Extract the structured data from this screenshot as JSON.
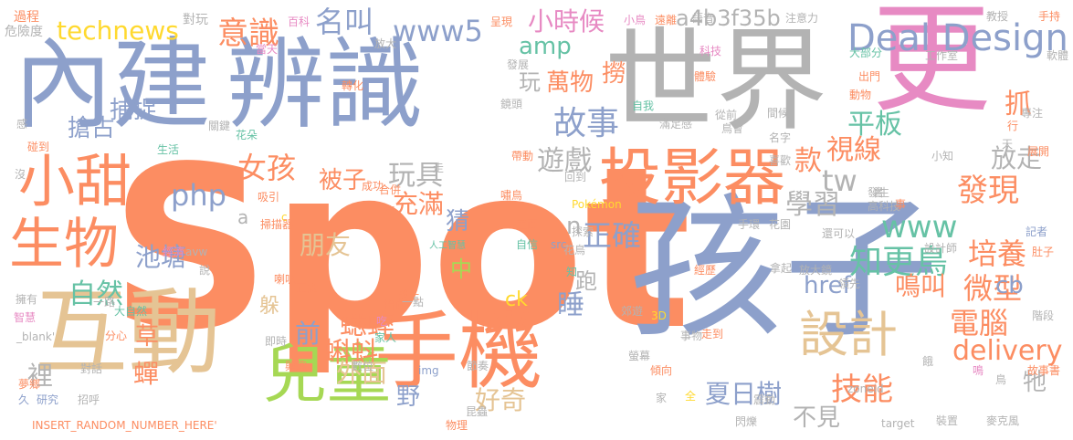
{
  "palette": {
    "orange": "#fc8d62",
    "blue": "#8da0cb",
    "pink": "#e78ac3",
    "green": "#a6d854",
    "yellow": "#ffd92f",
    "tan": "#e5c494",
    "gray": "#b3b3b3",
    "teal": "#66c2a5"
  },
  "words": [
    {
      "text": "Spot",
      "color": "orange"
    },
    {
      "text": "孩子",
      "color": "blue"
    },
    {
      "text": "世界",
      "color": "gray"
    },
    {
      "text": "更",
      "color": "pink"
    },
    {
      "text": "內建",
      "color": "blue"
    },
    {
      "text": "辨識",
      "color": "blue"
    },
    {
      "text": "互動",
      "color": "tan"
    },
    {
      "text": "手機",
      "color": "orange"
    },
    {
      "text": "投影器",
      "color": "orange"
    },
    {
      "text": "兒童",
      "color": "green"
    },
    {
      "text": "小甜",
      "color": "orange"
    },
    {
      "text": "生物",
      "color": "orange"
    },
    {
      "text": "設計",
      "color": "tan"
    },
    {
      "text": "Deal Design",
      "color": "blue"
    },
    {
      "text": "technews",
      "color": "yellow"
    },
    {
      "text": "www5",
      "color": "blue"
    },
    {
      "text": "意識",
      "color": "orange"
    },
    {
      "text": "名叫",
      "color": "blue"
    },
    {
      "text": "a4b3f35b",
      "color": "gray"
    },
    {
      "text": "小時候",
      "color": "pink"
    },
    {
      "text": "amp",
      "color": "teal"
    },
    {
      "text": "故事",
      "color": "blue"
    },
    {
      "text": "遊戲",
      "color": "gray"
    },
    {
      "text": "平板",
      "color": "teal"
    },
    {
      "text": "款",
      "color": "orange"
    },
    {
      "text": "視線",
      "color": "orange"
    },
    {
      "text": "女孩",
      "color": "orange"
    },
    {
      "text": "php",
      "color": "blue"
    },
    {
      "text": "玩具",
      "color": "gray"
    },
    {
      "text": "學習",
      "color": "gray"
    },
    {
      "text": "tw",
      "color": "gray"
    },
    {
      "text": "www",
      "color": "teal"
    },
    {
      "text": "發現",
      "color": "orange"
    },
    {
      "text": "放走",
      "color": "gray"
    },
    {
      "text": "正確",
      "color": "blue"
    },
    {
      "text": "知更鳥",
      "color": "teal"
    },
    {
      "text": "培養",
      "color": "orange"
    },
    {
      "text": "自然",
      "color": "teal"
    },
    {
      "text": "朋友",
      "color": "tan"
    },
    {
      "text": "池塘",
      "color": "blue"
    },
    {
      "text": "蟋蟀",
      "color": "orange"
    },
    {
      "text": "蝌蚪",
      "color": "orange"
    },
    {
      "text": "外面",
      "color": "tan"
    },
    {
      "text": "微型",
      "color": "orange"
    },
    {
      "text": "電腦",
      "color": "orange"
    },
    {
      "text": "技能",
      "color": "orange"
    },
    {
      "text": "delivery",
      "color": "orange"
    },
    {
      "text": "夏日樹",
      "color": "blue"
    },
    {
      "text": "不見",
      "color": "gray"
    },
    {
      "text": "好奇",
      "color": "tan"
    },
    {
      "text": "cb",
      "color": "blue"
    },
    {
      "text": "href",
      "color": "blue"
    },
    {
      "text": "鳴叫",
      "color": "orange"
    },
    {
      "text": "捕捉",
      "color": "blue"
    },
    {
      "text": "搶占",
      "color": "blue"
    },
    {
      "text": "被子",
      "color": "orange"
    },
    {
      "text": "充滿",
      "color": "orange"
    },
    {
      "text": "猜",
      "color": "blue"
    },
    {
      "text": "中",
      "color": "green"
    },
    {
      "text": "ck",
      "color": "yellow"
    },
    {
      "text": "睡",
      "color": "blue"
    },
    {
      "text": "跑",
      "color": "gray"
    },
    {
      "text": "萬物",
      "color": "orange"
    },
    {
      "text": "撈",
      "color": "orange"
    },
    {
      "text": "玩",
      "color": "gray"
    },
    {
      "text": "前",
      "color": "blue"
    },
    {
      "text": "草",
      "color": "orange"
    },
    {
      "text": "躲",
      "color": "tan"
    },
    {
      "text": "裡",
      "color": "gray"
    },
    {
      "text": "蟬",
      "color": "orange"
    },
    {
      "text": "野",
      "color": "blue"
    },
    {
      "text": "抓",
      "color": "orange"
    },
    {
      "text": "牠",
      "color": "gray"
    },
    {
      "text": "n",
      "color": "gray"
    },
    {
      "text": "a",
      "color": "gray"
    },
    {
      "text": "過程",
      "color": "orange"
    },
    {
      "text": "危險度",
      "color": "gray"
    },
    {
      "text": "對玩",
      "color": "gray"
    },
    {
      "text": "百科",
      "color": "pink"
    },
    {
      "text": "呈現",
      "color": "orange"
    },
    {
      "text": "小鳥",
      "color": "pink"
    },
    {
      "text": "遠離",
      "color": "orange"
    },
    {
      "text": "語音",
      "color": "gray"
    },
    {
      "text": "注意力",
      "color": "gray"
    },
    {
      "text": "教授",
      "color": "gray"
    },
    {
      "text": "手持",
      "color": "orange"
    },
    {
      "text": "軟體",
      "color": "gray"
    },
    {
      "text": "工作室",
      "color": "gray"
    },
    {
      "text": "科技",
      "color": "pink"
    },
    {
      "text": "大部分",
      "color": "teal"
    },
    {
      "text": "出門",
      "color": "orange"
    },
    {
      "text": "動物",
      "color": "orange"
    },
    {
      "text": "專注",
      "color": "gray"
    },
    {
      "text": "展開",
      "color": "orange"
    },
    {
      "text": "記者",
      "color": "blue"
    },
    {
      "text": "肚子",
      "color": "orange"
    },
    {
      "text": "高科技",
      "color": "gray"
    },
    {
      "text": "發生",
      "color": "gray"
    },
    {
      "text": "還可以",
      "color": "gray"
    },
    {
      "text": "設計師",
      "color": "gray"
    },
    {
      "text": "放大鏡",
      "color": "gray"
    },
    {
      "text": "領先",
      "color": "gray"
    },
    {
      "text": "階段",
      "color": "gray"
    },
    {
      "text": "故事書",
      "color": "orange"
    },
    {
      "text": "麥克風",
      "color": "gray"
    },
    {
      "text": "裝置",
      "color": "gray"
    },
    {
      "text": "target",
      "color": "gray"
    },
    {
      "text": "鳥",
      "color": "gray"
    },
    {
      "text": "閃爍",
      "color": "gray"
    },
    {
      "text": "zoneid",
      "color": "gray"
    },
    {
      "text": "震動",
      "color": "gray"
    },
    {
      "text": "全",
      "color": "yellow"
    },
    {
      "text": "家",
      "color": "gray"
    },
    {
      "text": "傾向",
      "color": "orange"
    },
    {
      "text": "螢幕",
      "color": "gray"
    },
    {
      "text": "走到",
      "color": "orange"
    },
    {
      "text": "事物",
      "color": "gray"
    },
    {
      "text": "3D",
      "color": "yellow"
    },
    {
      "text": "拿起",
      "color": "gray"
    },
    {
      "text": "經歷",
      "color": "orange"
    },
    {
      "text": "花園",
      "color": "gray"
    },
    {
      "text": "src",
      "color": "blue"
    },
    {
      "text": "手環",
      "color": "gray"
    },
    {
      "text": "探索",
      "color": "gray"
    },
    {
      "text": "畫面",
      "color": "orange"
    },
    {
      "text": "自信",
      "color": "teal"
    },
    {
      "text": "花鳥",
      "color": "gray"
    },
    {
      "text": "知",
      "color": "teal"
    },
    {
      "text": "郊遊",
      "color": "gray"
    },
    {
      "text": "節奏",
      "color": "gray"
    },
    {
      "text": "人工智慧",
      "color": "teal"
    },
    {
      "text": "Pokémon",
      "color": "yellow"
    },
    {
      "text": "回到",
      "color": "gray"
    },
    {
      "text": "嘯鳥",
      "color": "orange"
    },
    {
      "text": "帶動",
      "color": "orange"
    },
    {
      "text": "滿足感",
      "color": "gray"
    },
    {
      "text": "從前",
      "color": "gray"
    },
    {
      "text": "鳥會",
      "color": "gray"
    },
    {
      "text": "名字",
      "color": "gray"
    },
    {
      "text": "喜歡",
      "color": "gray"
    },
    {
      "text": "小知",
      "color": "gray"
    },
    {
      "text": "書",
      "color": "gray"
    },
    {
      "text": "事",
      "color": "orange"
    },
    {
      "text": "隻",
      "color": "orange"
    },
    {
      "text": "合併",
      "color": "orange"
    },
    {
      "text": "吸引",
      "color": "orange"
    },
    {
      "text": "成功",
      "color": "orange"
    },
    {
      "text": "走",
      "color": "gray"
    },
    {
      "text": "生活",
      "color": "teal"
    },
    {
      "text": "感",
      "color": "gray"
    },
    {
      "text": "碰到",
      "color": "orange"
    },
    {
      "text": "關鍵",
      "color": "gray"
    },
    {
      "text": "花朵",
      "color": "teal"
    },
    {
      "text": "鏡頭",
      "color": "gray"
    },
    {
      "text": "轉化",
      "color": "orange"
    },
    {
      "text": "自我",
      "color": "teal"
    },
    {
      "text": "發展",
      "color": "gray"
    },
    {
      "text": "放大",
      "color": "gray"
    },
    {
      "text": "當天",
      "color": "pink"
    },
    {
      "text": "體驗",
      "color": "orange"
    },
    {
      "text": "間候",
      "color": "gray"
    },
    {
      "text": "天",
      "color": "gray"
    },
    {
      "text": "行",
      "color": "orange"
    },
    {
      "text": "沒",
      "color": "gray"
    },
    {
      "text": "c",
      "color": "yellow"
    },
    {
      "text": "掃描器",
      "color": "orange"
    },
    {
      "text": "經濟",
      "color": "pink"
    },
    {
      "text": "avw",
      "color": "gray"
    },
    {
      "text": "說",
      "color": "gray"
    },
    {
      "text": "喇叭",
      "color": "orange"
    },
    {
      "text": "正念",
      "color": "orange"
    },
    {
      "text": "愛上",
      "color": "orange"
    },
    {
      "text": "指向",
      "color": "orange"
    },
    {
      "text": "一點",
      "color": "gray"
    },
    {
      "text": "吃",
      "color": "pink"
    },
    {
      "text": "家人",
      "color": "teal"
    },
    {
      "text": "數位",
      "color": "gray"
    },
    {
      "text": "img",
      "color": "blue"
    },
    {
      "text": "興趣",
      "color": "orange"
    },
    {
      "text": "即時",
      "color": "gray"
    },
    {
      "text": "大自然",
      "color": "teal"
    },
    {
      "text": "一路",
      "color": "gray"
    },
    {
      "text": "擁有",
      "color": "gray"
    },
    {
      "text": "智慧",
      "color": "pink"
    },
    {
      "text": "分心",
      "color": "orange"
    },
    {
      "text": "_blank'",
      "color": "gray"
    },
    {
      "text": "對話",
      "color": "gray"
    },
    {
      "text": "夢鄉",
      "color": "orange"
    },
    {
      "text": "久",
      "color": "blue"
    },
    {
      "text": "研究",
      "color": "blue"
    },
    {
      "text": "招呼",
      "color": "gray"
    },
    {
      "text": "INSERT_RANDOM_NUMBER_HERE'",
      "color": "orange"
    },
    {
      "text": "物理",
      "color": "orange"
    },
    {
      "text": "昆蟲",
      "color": "gray"
    },
    {
      "text": "鳴",
      "color": "pink"
    },
    {
      "text": "餓",
      "color": "gray"
    }
  ]
}
